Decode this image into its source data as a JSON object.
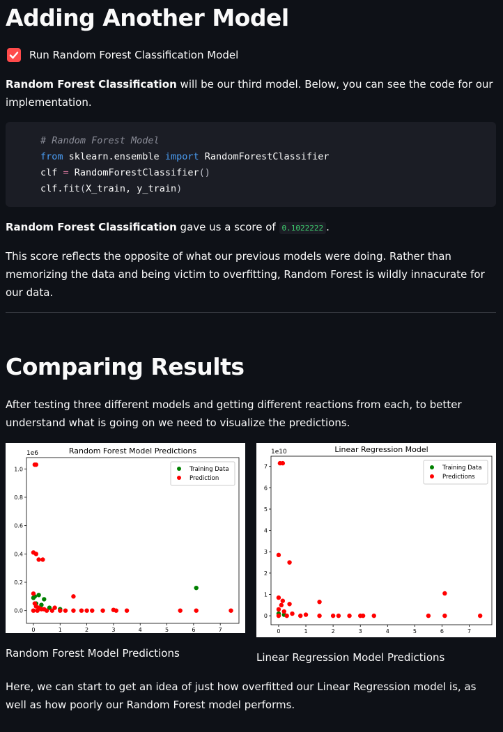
{
  "section1": {
    "title": "Adding Another Model",
    "checkbox": {
      "label": "Run Random Forest Classification Model",
      "checked": true
    },
    "intro": {
      "bold": "Random Forest Classification",
      "text": " will be our third model. Below, you can see the code for our implementation."
    },
    "code": [
      [
        {
          "text": "# Random Forest Model",
          "style": "comment"
        }
      ],
      [
        {
          "text": "from",
          "style": "keyword"
        },
        {
          "text": " sklearn.ensemble ",
          "style": "plain"
        },
        {
          "text": "import",
          "style": "keyword"
        },
        {
          "text": " RandomForestClassifier",
          "style": "plain"
        }
      ],
      [
        {
          "text": "clf ",
          "style": "plain"
        },
        {
          "text": "=",
          "style": "operator"
        },
        {
          "text": " RandomForestClassifier",
          "style": "plain"
        },
        {
          "text": "()",
          "style": "punct"
        }
      ],
      [
        {
          "text": "clf.fit",
          "style": "plain"
        },
        {
          "text": "(",
          "style": "punct"
        },
        {
          "text": "X_train, y_train",
          "style": "plain"
        },
        {
          "text": ")",
          "style": "punct"
        }
      ]
    ],
    "score_line": {
      "bold": "Random Forest Classification",
      "text": " gave us a score of ",
      "score": "0.1022222",
      "end": "."
    },
    "paragraph": "This score reflects the opposite of what our previous models were doing. Rather than memorizing the data and being victim to overfitting, Random Forest is wildly innacurate for our data."
  },
  "section2": {
    "title": "Comparing Results",
    "paragraph": "After testing three different models and getting different reactions from each, to better understand what is going on we need to visualize the predictions.",
    "figures": [
      {
        "caption": "Random Forest Model Predictions",
        "chart": {
          "type": "scatter",
          "title": "Random Forest Model Predictions",
          "y_offset_label": "1e6",
          "xlim": [
            -0.26,
            7.7
          ],
          "ylim": [
            -0.09,
            1.08
          ],
          "xticks": [
            0,
            1,
            2,
            3,
            4,
            5,
            6,
            7
          ],
          "yticks": [
            {
              "value": 0,
              "label": "0.0"
            },
            0.2,
            0.4,
            0.6,
            0.8,
            {
              "value": 1,
              "label": "1.0"
            }
          ],
          "legend": "upper right",
          "series": [
            {
              "name": "Training Data",
              "color": "#008000",
              "x": [
                0,
                0.05,
                0.2,
                0.4,
                0.1,
                0.3,
                0.6,
                1,
                6.1
              ],
              "y": [
                0.09,
                0.1,
                0.11,
                0.08,
                0.05,
                0.04,
                0.02,
                0.01,
                0.16
              ]
            },
            {
              "name": "Prediction",
              "color": "#ff0000",
              "x": [
                0.05,
                0.1,
                0,
                0.1,
                0.2,
                0.35,
                0,
                0.05,
                0.1,
                0.2,
                0.3,
                0.5,
                0.7,
                1,
                1.5,
                1.5,
                2,
                2.2,
                2.6,
                3,
                3.1,
                3.5,
                5.5,
                6.1,
                7.4,
                0,
                0.15,
                0.4,
                0.8,
                1.2,
                1.8
              ],
              "y": [
                1.03,
                1.03,
                0.41,
                0.4,
                0.36,
                0.36,
                0.12,
                0.05,
                0.03,
                0.02,
                0.01,
                0,
                0,
                0,
                0.1,
                0,
                0,
                0,
                0,
                0.005,
                0,
                0,
                0,
                0,
                0,
                0,
                0,
                0.01,
                0.02,
                0,
                0
              ]
            }
          ]
        }
      },
      {
        "caption": "Linear Regression Model Predictions",
        "chart": {
          "type": "scatter",
          "title": "Linear Regression Model",
          "y_offset_label": "1e10",
          "xlim": [
            -0.28,
            7.83
          ],
          "ylim": [
            -0.42,
            7.48
          ],
          "xticks": [
            0,
            1,
            2,
            3,
            4,
            5,
            6,
            7
          ],
          "yticks": [
            0,
            1,
            2,
            3,
            4,
            5,
            6,
            7
          ],
          "legend": "upper right",
          "series": [
            {
              "name": "Training Data",
              "color": "#008000",
              "x": [
                0,
                0.2
              ],
              "y": [
                0.1,
                0.05
              ]
            },
            {
              "name": "Predictions",
              "color": "#ff0000",
              "x": [
                0.05,
                0.15,
                0,
                0.4,
                0,
                0.15,
                0.1,
                0.4,
                1.5,
                6.1,
                0,
                0.2,
                0.5,
                1,
                1.5,
                2,
                2.2,
                2.6,
                3,
                3.1,
                3.5,
                5.5,
                6.1,
                7.4,
                0.8,
                0,
                0.3
              ],
              "y": [
                7.15,
                7.15,
                2.85,
                2.5,
                0.85,
                0.7,
                0.5,
                0.55,
                0.65,
                1.05,
                0.3,
                0.2,
                0.1,
                0.05,
                0,
                0,
                0,
                0,
                0,
                0,
                0,
                0,
                0,
                0,
                0,
                0,
                0
              ]
            }
          ]
        }
      }
    ],
    "closing": "Here, we can start to get an idea of just how overfitted our Linear Regression model is, as well as how poorly our Random Forest model performs."
  }
}
